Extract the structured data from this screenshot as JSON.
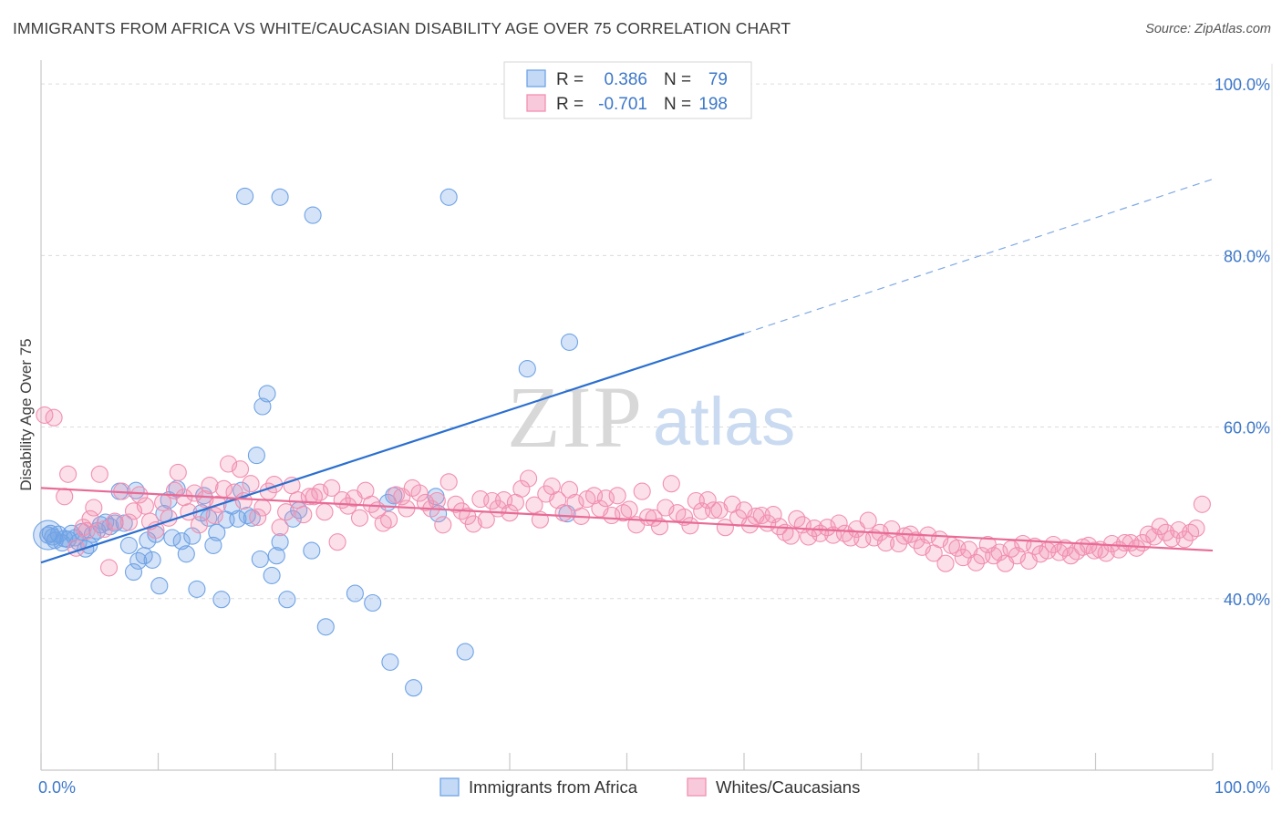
{
  "title": "IMMIGRANTS FROM AFRICA VS WHITE/CAUCASIAN DISABILITY AGE OVER 75 CORRELATION CHART",
  "source": "Source: ZipAtlas.com",
  "watermark": {
    "zip": "ZIP",
    "atlas": "atlas"
  },
  "legend_top": {
    "rows": [
      {
        "r_label": "R =",
        "r_value": "0.386",
        "n_label": "N =",
        "n_value": "79",
        "color": "#6fa3e6"
      },
      {
        "r_label": "R =",
        "r_value": "-0.701",
        "n_label": "N =",
        "n_value": "198",
        "color": "#f28fb1"
      }
    ]
  },
  "chart_data": {
    "type": "scatter",
    "title": "IMMIGRANTS FROM AFRICA VS WHITE/CAUCASIAN DISABILITY AGE OVER 75 CORRELATION CHART",
    "xlabel": "",
    "ylabel": "Disability Age Over 75",
    "xlim": [
      0,
      100
    ],
    "ylim": [
      20,
      101.5
    ],
    "x_ticks": [
      {
        "value": 0,
        "label": "0.0%"
      },
      {
        "value": 100,
        "label": "100.0%"
      }
    ],
    "y_ticks": [
      {
        "value": 40,
        "label": "40.0%"
      },
      {
        "value": 60,
        "label": "60.0%"
      },
      {
        "value": 80,
        "label": "80.0%"
      },
      {
        "value": 100,
        "label": "100.0%"
      }
    ],
    "grid": true,
    "legend_position": "bottom",
    "series": [
      {
        "name": "Immigrants from Africa",
        "color": "#6fa3e6",
        "trend": {
          "x0": 0,
          "y0": 44.2,
          "x1": 60,
          "y1": 70.9,
          "dashed_to_x": 100,
          "dashed_to_y": 88.9,
          "color": "#2b6fd0"
        },
        "points": [
          [
            0.6,
            47.4
          ],
          [
            0.8,
            47.6
          ],
          [
            1.0,
            47.2
          ],
          [
            1.2,
            46.8
          ],
          [
            1.5,
            47.5
          ],
          [
            1.8,
            46.5
          ],
          [
            2.0,
            47.0
          ],
          [
            2.3,
            46.9
          ],
          [
            2.6,
            47.6
          ],
          [
            2.9,
            47.1
          ],
          [
            3.2,
            46.6
          ],
          [
            3.5,
            47.8
          ],
          [
            3.8,
            45.8
          ],
          [
            4.1,
            46.2
          ],
          [
            4.4,
            47.5
          ],
          [
            4.8,
            47.9
          ],
          [
            5.1,
            48.6
          ],
          [
            5.5,
            48.9
          ],
          [
            5.9,
            48.4
          ],
          [
            6.3,
            48.8
          ],
          [
            6.7,
            52.5
          ],
          [
            7.1,
            48.8
          ],
          [
            7.5,
            46.2
          ],
          [
            7.9,
            43.1
          ],
          [
            8.3,
            44.4
          ],
          [
            8.1,
            52.6
          ],
          [
            8.8,
            45.0
          ],
          [
            9.1,
            46.8
          ],
          [
            9.5,
            44.5
          ],
          [
            9.8,
            47.5
          ],
          [
            10.1,
            41.5
          ],
          [
            10.5,
            49.9
          ],
          [
            10.9,
            51.5
          ],
          [
            11.2,
            47.1
          ],
          [
            11.6,
            52.8
          ],
          [
            12.0,
            46.7
          ],
          [
            12.4,
            45.2
          ],
          [
            12.9,
            47.3
          ],
          [
            13.3,
            41.1
          ],
          [
            13.7,
            50.0
          ],
          [
            13.9,
            52.0
          ],
          [
            14.3,
            49.4
          ],
          [
            14.7,
            46.2
          ],
          [
            15.0,
            47.7
          ],
          [
            15.4,
            39.9
          ],
          [
            15.8,
            49.2
          ],
          [
            16.3,
            50.8
          ],
          [
            16.8,
            49.3
          ],
          [
            17.1,
            52.6
          ],
          [
            17.6,
            49.7
          ],
          [
            18.0,
            49.4
          ],
          [
            18.4,
            56.7
          ],
          [
            18.7,
            44.6
          ],
          [
            18.9,
            62.4
          ],
          [
            19.3,
            63.9
          ],
          [
            19.7,
            42.7
          ],
          [
            20.1,
            45.0
          ],
          [
            20.4,
            46.6
          ],
          [
            21.0,
            39.9
          ],
          [
            21.5,
            49.3
          ],
          [
            22.0,
            50.3
          ],
          [
            23.1,
            45.6
          ],
          [
            24.3,
            36.7
          ],
          [
            26.8,
            40.6
          ],
          [
            28.3,
            39.5
          ],
          [
            29.6,
            51.2
          ],
          [
            30.1,
            52.0
          ],
          [
            29.8,
            32.6
          ],
          [
            31.8,
            29.6
          ],
          [
            33.9,
            49.9
          ],
          [
            36.2,
            33.8
          ],
          [
            33.7,
            51.9
          ],
          [
            41.5,
            66.8
          ],
          [
            45.1,
            69.9
          ],
          [
            44.9,
            49.9
          ],
          [
            23.2,
            84.7
          ],
          [
            20.4,
            86.8
          ],
          [
            17.4,
            86.9
          ],
          [
            34.8,
            86.8
          ]
        ]
      },
      {
        "name": "Whites/Caucasians",
        "color": "#f28fb1",
        "trend": {
          "x0": 0,
          "y0": 52.9,
          "x1": 100,
          "y1": 45.6,
          "color": "#e86b97"
        },
        "points": [
          [
            0.3,
            61.4
          ],
          [
            1.1,
            61.1
          ],
          [
            2.0,
            51.9
          ],
          [
            2.3,
            54.5
          ],
          [
            3.0,
            45.9
          ],
          [
            3.6,
            48.3
          ],
          [
            3.9,
            47.9
          ],
          [
            4.2,
            49.3
          ],
          [
            4.5,
            50.6
          ],
          [
            5.0,
            54.5
          ],
          [
            5.4,
            48.1
          ],
          [
            5.8,
            43.6
          ],
          [
            6.3,
            49.0
          ],
          [
            6.9,
            52.5
          ],
          [
            7.5,
            48.9
          ],
          [
            7.9,
            50.2
          ],
          [
            8.4,
            52.1
          ],
          [
            8.9,
            50.8
          ],
          [
            9.3,
            49.0
          ],
          [
            9.8,
            48.0
          ],
          [
            10.4,
            51.2
          ],
          [
            10.9,
            49.4
          ],
          [
            11.4,
            52.6
          ],
          [
            11.7,
            54.7
          ],
          [
            12.2,
            51.8
          ],
          [
            12.6,
            50.1
          ],
          [
            13.1,
            52.3
          ],
          [
            13.5,
            48.6
          ],
          [
            14.0,
            51.6
          ],
          [
            14.4,
            53.2
          ],
          [
            14.8,
            49.7
          ],
          [
            15.1,
            51.0
          ],
          [
            15.6,
            52.8
          ],
          [
            16.0,
            55.7
          ],
          [
            16.5,
            52.4
          ],
          [
            17.0,
            55.1
          ],
          [
            17.3,
            51.4
          ],
          [
            17.9,
            53.4
          ],
          [
            18.5,
            49.5
          ],
          [
            18.9,
            50.6
          ],
          [
            19.4,
            52.5
          ],
          [
            19.9,
            53.3
          ],
          [
            20.4,
            48.3
          ],
          [
            20.9,
            50.1
          ],
          [
            21.4,
            53.2
          ],
          [
            21.9,
            51.5
          ],
          [
            22.4,
            49.8
          ],
          [
            22.9,
            51.9
          ],
          [
            23.3,
            51.9
          ],
          [
            23.8,
            52.4
          ],
          [
            24.2,
            50.1
          ],
          [
            24.8,
            52.9
          ],
          [
            25.3,
            46.6
          ],
          [
            25.7,
            51.5
          ],
          [
            26.2,
            50.8
          ],
          [
            26.7,
            51.7
          ],
          [
            27.2,
            49.4
          ],
          [
            27.7,
            52.6
          ],
          [
            28.2,
            51.0
          ],
          [
            28.7,
            50.3
          ],
          [
            29.2,
            48.8
          ],
          [
            29.7,
            49.2
          ],
          [
            30.3,
            52.1
          ],
          [
            30.8,
            51.9
          ],
          [
            31.2,
            50.5
          ],
          [
            31.7,
            52.9
          ],
          [
            32.3,
            52.3
          ],
          [
            32.8,
            51.2
          ],
          [
            33.3,
            50.5
          ],
          [
            33.8,
            51.4
          ],
          [
            34.3,
            48.6
          ],
          [
            34.8,
            53.6
          ],
          [
            35.4,
            51.0
          ],
          [
            35.9,
            50.2
          ],
          [
            36.4,
            49.6
          ],
          [
            36.9,
            48.7
          ],
          [
            37.5,
            51.6
          ],
          [
            38.0,
            49.2
          ],
          [
            38.5,
            51.4
          ],
          [
            39.0,
            50.5
          ],
          [
            39.5,
            51.5
          ],
          [
            40.0,
            50.0
          ],
          [
            40.5,
            51.2
          ],
          [
            41.0,
            52.8
          ],
          [
            41.6,
            54.0
          ],
          [
            42.1,
            50.9
          ],
          [
            42.6,
            49.2
          ],
          [
            43.1,
            52.2
          ],
          [
            43.6,
            53.1
          ],
          [
            44.1,
            51.5
          ],
          [
            44.6,
            50.0
          ],
          [
            45.1,
            52.7
          ],
          [
            45.6,
            51.2
          ],
          [
            46.1,
            49.6
          ],
          [
            46.6,
            51.6
          ],
          [
            47.2,
            52.0
          ],
          [
            47.7,
            50.5
          ],
          [
            48.2,
            51.7
          ],
          [
            48.7,
            49.7
          ],
          [
            49.2,
            52.0
          ],
          [
            49.7,
            50.0
          ],
          [
            50.2,
            50.4
          ],
          [
            50.8,
            48.6
          ],
          [
            51.3,
            52.5
          ],
          [
            51.8,
            49.5
          ],
          [
            52.3,
            49.4
          ],
          [
            52.8,
            48.4
          ],
          [
            53.3,
            50.6
          ],
          [
            53.8,
            53.4
          ],
          [
            54.3,
            50.0
          ],
          [
            54.9,
            49.5
          ],
          [
            55.4,
            48.5
          ],
          [
            55.9,
            51.4
          ],
          [
            56.4,
            50.2
          ],
          [
            56.9,
            51.5
          ],
          [
            57.4,
            50.3
          ],
          [
            57.9,
            50.3
          ],
          [
            58.4,
            48.3
          ],
          [
            59.0,
            51.0
          ],
          [
            59.5,
            49.4
          ],
          [
            60.0,
            50.3
          ],
          [
            60.5,
            48.6
          ],
          [
            61.0,
            49.6
          ],
          [
            61.5,
            49.7
          ],
          [
            62.0,
            48.8
          ],
          [
            62.5,
            49.8
          ],
          [
            63.0,
            48.4
          ],
          [
            63.5,
            47.7
          ],
          [
            64.0,
            47.3
          ],
          [
            64.5,
            49.3
          ],
          [
            65.0,
            48.6
          ],
          [
            65.5,
            47.2
          ],
          [
            66.0,
            48.2
          ],
          [
            66.5,
            47.6
          ],
          [
            67.1,
            48.3
          ],
          [
            67.6,
            47.4
          ],
          [
            68.1,
            48.8
          ],
          [
            68.6,
            47.6
          ],
          [
            69.1,
            47.1
          ],
          [
            69.6,
            48.1
          ],
          [
            70.1,
            46.9
          ],
          [
            70.6,
            49.1
          ],
          [
            71.1,
            47.1
          ],
          [
            71.6,
            47.7
          ],
          [
            72.1,
            46.5
          ],
          [
            72.6,
            48.1
          ],
          [
            73.2,
            46.4
          ],
          [
            73.7,
            47.3
          ],
          [
            74.2,
            47.5
          ],
          [
            74.7,
            46.8
          ],
          [
            75.2,
            46.0
          ],
          [
            75.7,
            47.4
          ],
          [
            76.2,
            45.3
          ],
          [
            76.7,
            46.9
          ],
          [
            77.2,
            44.1
          ],
          [
            77.7,
            46.2
          ],
          [
            78.2,
            45.9
          ],
          [
            78.7,
            44.8
          ],
          [
            79.2,
            45.7
          ],
          [
            79.8,
            44.2
          ],
          [
            80.3,
            45.0
          ],
          [
            80.8,
            46.3
          ],
          [
            81.3,
            45.0
          ],
          [
            81.8,
            45.4
          ],
          [
            82.3,
            44.1
          ],
          [
            82.8,
            45.8
          ],
          [
            83.3,
            45.0
          ],
          [
            83.8,
            46.4
          ],
          [
            84.3,
            44.4
          ],
          [
            84.8,
            46.1
          ],
          [
            85.3,
            45.2
          ],
          [
            85.9,
            45.6
          ],
          [
            86.4,
            46.3
          ],
          [
            86.9,
            45.4
          ],
          [
            87.4,
            45.9
          ],
          [
            87.9,
            45.0
          ],
          [
            88.4,
            45.5
          ],
          [
            88.9,
            46.0
          ],
          [
            89.4,
            46.2
          ],
          [
            89.9,
            45.6
          ],
          [
            90.4,
            45.7
          ],
          [
            90.9,
            45.3
          ],
          [
            91.4,
            46.4
          ],
          [
            92.0,
            45.7
          ],
          [
            92.5,
            46.5
          ],
          [
            93.0,
            46.5
          ],
          [
            93.5,
            45.9
          ],
          [
            94.0,
            46.5
          ],
          [
            94.5,
            47.5
          ],
          [
            95.0,
            47.2
          ],
          [
            95.5,
            48.4
          ],
          [
            96.0,
            47.7
          ],
          [
            96.5,
            47.0
          ],
          [
            97.1,
            48.0
          ],
          [
            97.6,
            46.9
          ],
          [
            98.1,
            47.7
          ],
          [
            98.6,
            48.2
          ],
          [
            99.1,
            51.0
          ]
        ]
      }
    ]
  },
  "legend_bottom": [
    {
      "label": "Immigrants from Africa",
      "color": "#6fa3e6"
    },
    {
      "label": "Whites/Caucasians",
      "color": "#f28fb1"
    }
  ]
}
